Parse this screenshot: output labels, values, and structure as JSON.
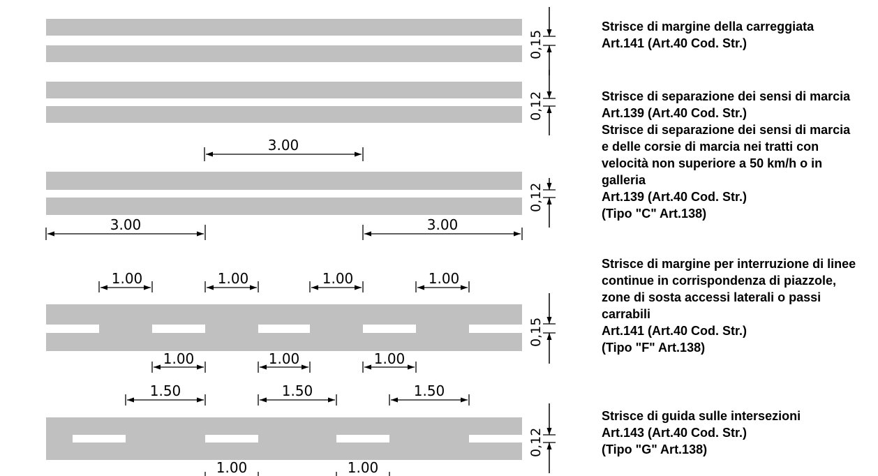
{
  "colors": {
    "road": "#c0c0c0",
    "marking": "#ffffff",
    "ink": "#000000"
  },
  "dimensions": {
    "width_015": "0,15",
    "width_012": "0,12",
    "len_300": "3.00",
    "len_100": "1.00",
    "len_150": "1.50"
  },
  "descriptions": [
    {
      "lines": [
        "Strisce di margine della carreggiata",
        "Art.141 (Art.40 Cod. Str.)"
      ]
    },
    {
      "lines": [
        "Strisce di separazione dei sensi di marcia",
        "Art.139 (Art.40 Cod. Str.)"
      ]
    },
    {
      "lines": [
        "Strisce di separazione dei sensi di marcia",
        "e delle corsie di marcia nei tratti con",
        "velocità non superiore a 50 km/h o in",
        "galleria",
        "Art.139 (Art.40 Cod. Str.)",
        "(Tipo \"C\" Art.138)"
      ]
    },
    {
      "lines": [
        "Strisce di margine per interruzione di linee",
        "continue in corrispondenza di piazzole,",
        "zone di sosta accessi laterali o passi",
        "carrabili",
        "Art.141 (Art.40 Cod. Str.)",
        "(Tipo \"F\" Art.138)"
      ]
    },
    {
      "lines": [
        "Strisce di guida sulle intersezioni",
        "Art.143 (Art.40 Cod. Str.)",
        "(Tipo \"G\" Art.138)"
      ]
    }
  ]
}
